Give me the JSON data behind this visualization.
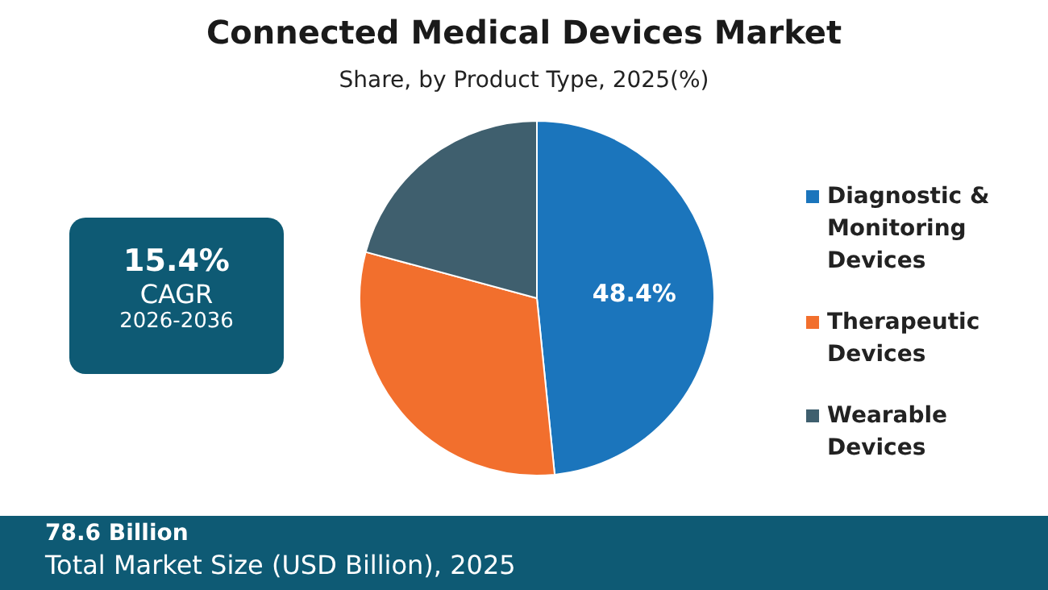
{
  "chart_data": {
    "type": "pie",
    "title": "Connected Medical Devices Market",
    "subtitle": "Share, by Product Type, 2025(%)",
    "categories": [
      "Diagnostic & Monitoring Devices",
      "Therapeutic Devices",
      "Wearable Devices"
    ],
    "values": [
      48.4,
      30.8,
      20.8
    ],
    "colors": [
      "#1b75bc",
      "#f26f2d",
      "#3f5f6e"
    ],
    "value_labels": [
      "48.4%",
      null,
      null
    ],
    "legend": "right",
    "annotations": [
      "15.4%",
      "CAGR",
      "2026-2036",
      "78.6 Billion",
      "Total Market Size (USD Billion), 2025"
    ]
  }
}
